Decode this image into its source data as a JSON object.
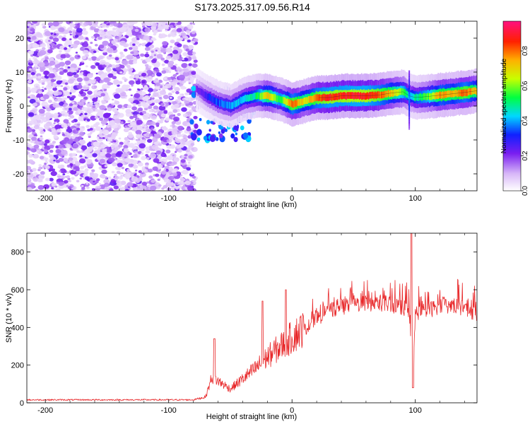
{
  "title": "S173.2025.317.09.56.R14",
  "chart_data": [
    {
      "type": "heatmap",
      "name": "spectrogram",
      "xlabel": "Height of straight line (km)",
      "ylabel": "Frequency (Hz)",
      "xlim": [
        -215,
        150
      ],
      "ylim": [
        -25,
        25
      ],
      "xticks": [
        -200,
        -100,
        0,
        100
      ],
      "yticks": [
        -20,
        -10,
        0,
        10,
        20
      ],
      "colorbar_label": "Normalized spectral amplitude",
      "colorbar_ticks": [
        0.0,
        0.2,
        0.4,
        0.6,
        0.8
      ],
      "colorbar_range": [
        0,
        0.97
      ],
      "ridge": {
        "x": [
          -78,
          -70,
          -60,
          -50,
          -40,
          -30,
          -20,
          -10,
          0,
          10,
          20,
          30,
          40,
          50,
          60,
          70,
          80,
          90,
          95,
          100,
          110,
          120,
          130,
          140,
          150
        ],
        "freq": [
          5,
          3,
          1,
          0,
          2,
          3,
          3,
          2,
          0.5,
          1.5,
          2.5,
          2.5,
          3,
          3,
          3,
          3.2,
          3.8,
          4.2,
          3,
          2.5,
          2.8,
          3.2,
          3.6,
          4,
          4.5
        ],
        "amplitude": [
          0.2,
          0.3,
          0.35,
          0.4,
          0.45,
          0.5,
          0.75,
          0.55,
          0.85,
          0.7,
          0.85,
          0.9,
          0.9,
          0.92,
          0.92,
          0.85,
          0.75,
          0.6,
          0.45,
          0.5,
          0.6,
          0.8,
          0.75,
          0.85,
          0.7
        ]
      },
      "noise_region": {
        "x_range": [
          -215,
          -78
        ],
        "level": "low (0.05-0.2)"
      }
    },
    {
      "type": "line",
      "name": "snr",
      "xlabel": "Height of straight line (km)",
      "ylabel": "SNR (10 * v/v)",
      "xlim": [
        -215,
        150
      ],
      "ylim": [
        0,
        900
      ],
      "xticks": [
        -200,
        -100,
        0,
        100
      ],
      "yticks": [
        0,
        200,
        400,
        600,
        800
      ],
      "color": "#e8282a",
      "envelope": {
        "x": [
          -215,
          -80,
          -70,
          -65,
          -60,
          -50,
          -40,
          -30,
          -20,
          -10,
          0,
          10,
          20,
          30,
          40,
          50,
          60,
          70,
          80,
          90,
          95,
          98,
          100,
          110,
          120,
          130,
          140,
          150
        ],
        "y": [
          15,
          15,
          30,
          130,
          110,
          70,
          120,
          170,
          230,
          280,
          330,
          380,
          440,
          480,
          500,
          515,
          520,
          520,
          510,
          500,
          480,
          120,
          470,
          480,
          510,
          505,
          500,
          460
        ]
      },
      "spikes": [
        {
          "x": -63,
          "y": 340
        },
        {
          "x": -24,
          "y": 540
        },
        {
          "x": -5,
          "y": 600
        },
        {
          "x": 97,
          "y": 900
        }
      ],
      "dip": {
        "x": 98,
        "y": 80
      }
    }
  ]
}
